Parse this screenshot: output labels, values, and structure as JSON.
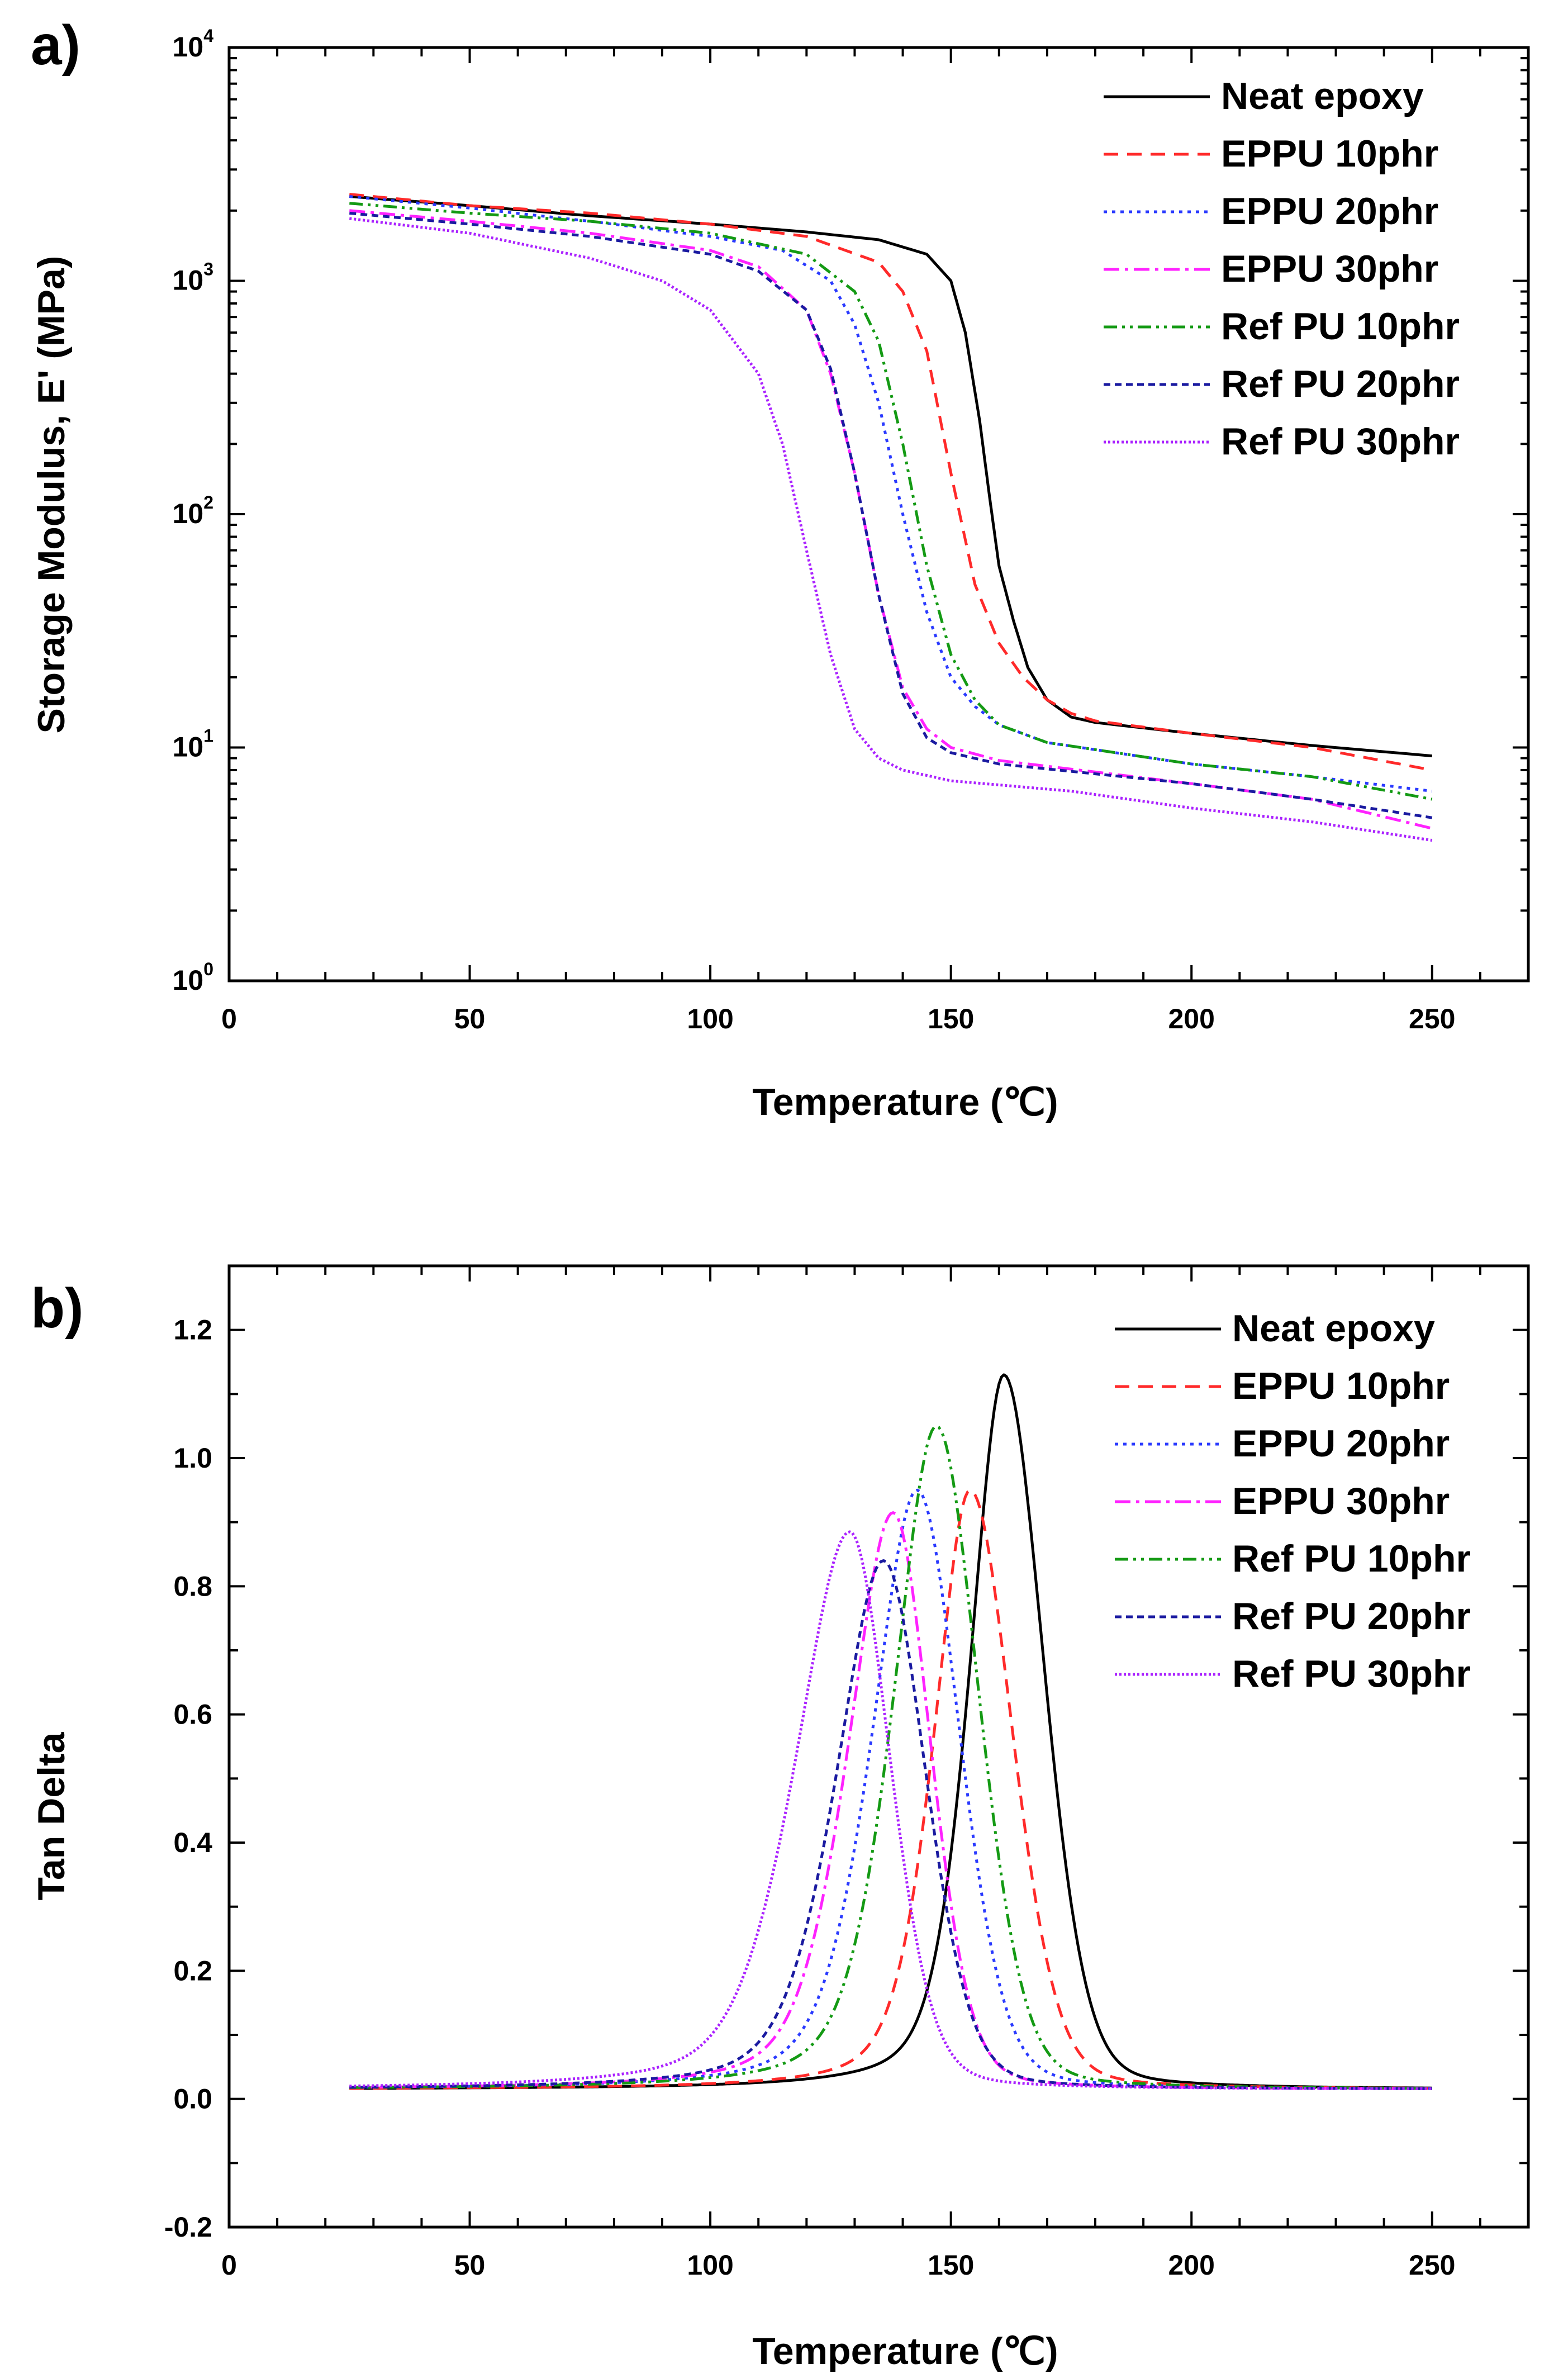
{
  "chart_data": [
    {
      "panel": "a)",
      "type": "line",
      "xlabel": "Temperature (℃)",
      "ylabel": "Storage Modulus, E' (MPa)",
      "xlim": [
        0,
        270
      ],
      "ylim": [
        1,
        10000
      ],
      "yscale": "log",
      "xticks": [
        0,
        50,
        100,
        150,
        200,
        250
      ],
      "yticks": [
        1,
        10,
        100,
        1000,
        10000
      ],
      "ytick_labels": [
        {
          "base": "10",
          "exp": "0"
        },
        {
          "base": "10",
          "exp": "1"
        },
        {
          "base": "10",
          "exp": "2"
        },
        {
          "base": "10",
          "exp": "3"
        },
        {
          "base": "10",
          "exp": "4"
        }
      ],
      "legend_position": "top-right",
      "series": [
        {
          "name": "Neat epoxy",
          "color": "#000000",
          "dash": "solid",
          "x": [
            25,
            50,
            75,
            100,
            120,
            135,
            145,
            150,
            153,
            156,
            158,
            160,
            163,
            166,
            170,
            175,
            180,
            200,
            225,
            250
          ],
          "y": [
            2300,
            2100,
            1900,
            1750,
            1620,
            1500,
            1300,
            1000,
            600,
            250,
            120,
            60,
            35,
            22,
            16,
            13.5,
            12.8,
            11.5,
            10.2,
            9.2
          ]
        },
        {
          "name": "EPPU 10phr",
          "color": "#ff2a2a",
          "dash": "dashed",
          "x": [
            25,
            50,
            75,
            100,
            120,
            135,
            140,
            145,
            150,
            155,
            160,
            165,
            170,
            175,
            180,
            200,
            225,
            250
          ],
          "y": [
            2350,
            2100,
            1950,
            1750,
            1550,
            1200,
            900,
            500,
            150,
            50,
            28,
            20,
            16,
            14,
            13,
            11.5,
            10,
            8
          ]
        },
        {
          "name": "EPPU 20phr",
          "color": "#2a3aff",
          "dash": "dotted",
          "x": [
            25,
            50,
            75,
            100,
            115,
            125,
            130,
            135,
            140,
            145,
            150,
            155,
            160,
            170,
            200,
            225,
            250
          ],
          "y": [
            2300,
            2050,
            1800,
            1550,
            1350,
            1000,
            650,
            300,
            100,
            38,
            20,
            15,
            12.5,
            10.5,
            8.5,
            7.5,
            6.5
          ]
        },
        {
          "name": "EPPU 30phr",
          "color": "#ff22ff",
          "dash": "dashdot",
          "x": [
            25,
            50,
            75,
            100,
            110,
            120,
            125,
            130,
            135,
            140,
            145,
            150,
            160,
            200,
            225,
            250
          ],
          "y": [
            2000,
            1800,
            1600,
            1350,
            1150,
            750,
            400,
            150,
            45,
            18,
            12,
            10,
            8.8,
            7,
            6,
            4.5
          ]
        },
        {
          "name": "Ref PU 10phr",
          "color": "#149a14",
          "dash": "dashdotdot",
          "x": [
            25,
            50,
            75,
            100,
            120,
            130,
            135,
            140,
            145,
            150,
            155,
            160,
            170,
            200,
            225,
            250
          ],
          "y": [
            2150,
            1950,
            1800,
            1600,
            1300,
            900,
            550,
            200,
            60,
            25,
            16,
            12.5,
            10.5,
            8.5,
            7.5,
            6
          ]
        },
        {
          "name": "Ref PU 20phr",
          "color": "#1a1aa0",
          "dash": "shortdash",
          "x": [
            25,
            50,
            75,
            100,
            110,
            120,
            125,
            130,
            135,
            140,
            145,
            150,
            160,
            200,
            225,
            250
          ],
          "y": [
            1950,
            1750,
            1550,
            1300,
            1100,
            750,
            420,
            150,
            45,
            17,
            11,
            9.5,
            8.5,
            7,
            6,
            5
          ]
        },
        {
          "name": "Ref PU 30phr",
          "color": "#aa22ff",
          "dash": "fine",
          "x": [
            25,
            50,
            75,
            90,
            100,
            110,
            115,
            120,
            125,
            130,
            135,
            140,
            150,
            175,
            200,
            225,
            250
          ],
          "y": [
            1850,
            1600,
            1250,
            1000,
            750,
            400,
            200,
            70,
            25,
            12,
            9,
            8,
            7.2,
            6.5,
            5.5,
            4.8,
            4
          ]
        }
      ]
    },
    {
      "panel": "b)",
      "type": "line",
      "xlabel": "Temperature (℃)",
      "ylabel": "Tan Delta",
      "xlim": [
        0,
        270
      ],
      "ylim": [
        -0.2,
        1.3
      ],
      "xticks": [
        0,
        50,
        100,
        150,
        200,
        250
      ],
      "yticks": [
        -0.2,
        0.0,
        0.2,
        0.4,
        0.6,
        0.8,
        1.0,
        1.2
      ],
      "ytick_labels": [
        "-0.2",
        "0.0",
        "0.2",
        "0.4",
        "0.6",
        "0.8",
        "1.0",
        "1.2"
      ],
      "legend_position": "top-right",
      "series": [
        {
          "name": "Neat epoxy",
          "color": "#000000",
          "dash": "solid",
          "peak_x": 161,
          "peak_y": 1.13,
          "sigma_left": 7.5,
          "sigma_right": 8.5
        },
        {
          "name": "EPPU 10phr",
          "color": "#ff2a2a",
          "dash": "dashed",
          "peak_x": 154,
          "peak_y": 0.95,
          "sigma_left": 8,
          "sigma_right": 9
        },
        {
          "name": "EPPU 20phr",
          "color": "#2a3aff",
          "dash": "dotted",
          "peak_x": 143,
          "peak_y": 0.95,
          "sigma_left": 10,
          "sigma_right": 9
        },
        {
          "name": "EPPU 30phr",
          "color": "#ff22ff",
          "dash": "dashdot",
          "peak_x": 138,
          "peak_y": 0.915,
          "sigma_left": 10,
          "sigma_right": 8
        },
        {
          "name": "Ref PU 10phr",
          "color": "#149a14",
          "dash": "dashdotdot",
          "peak_x": 147,
          "peak_y": 1.05,
          "sigma_left": 9.5,
          "sigma_right": 9
        },
        {
          "name": "Ref PU 20phr",
          "color": "#1a1aa0",
          "dash": "shortdash",
          "peak_x": 136,
          "peak_y": 0.84,
          "sigma_left": 10.5,
          "sigma_right": 9
        },
        {
          "name": "Ref PU 30phr",
          "color": "#aa22ff",
          "dash": "fine",
          "peak_x": 129,
          "peak_y": 0.885,
          "sigma_left": 12,
          "sigma_right": 8.5
        }
      ]
    }
  ]
}
